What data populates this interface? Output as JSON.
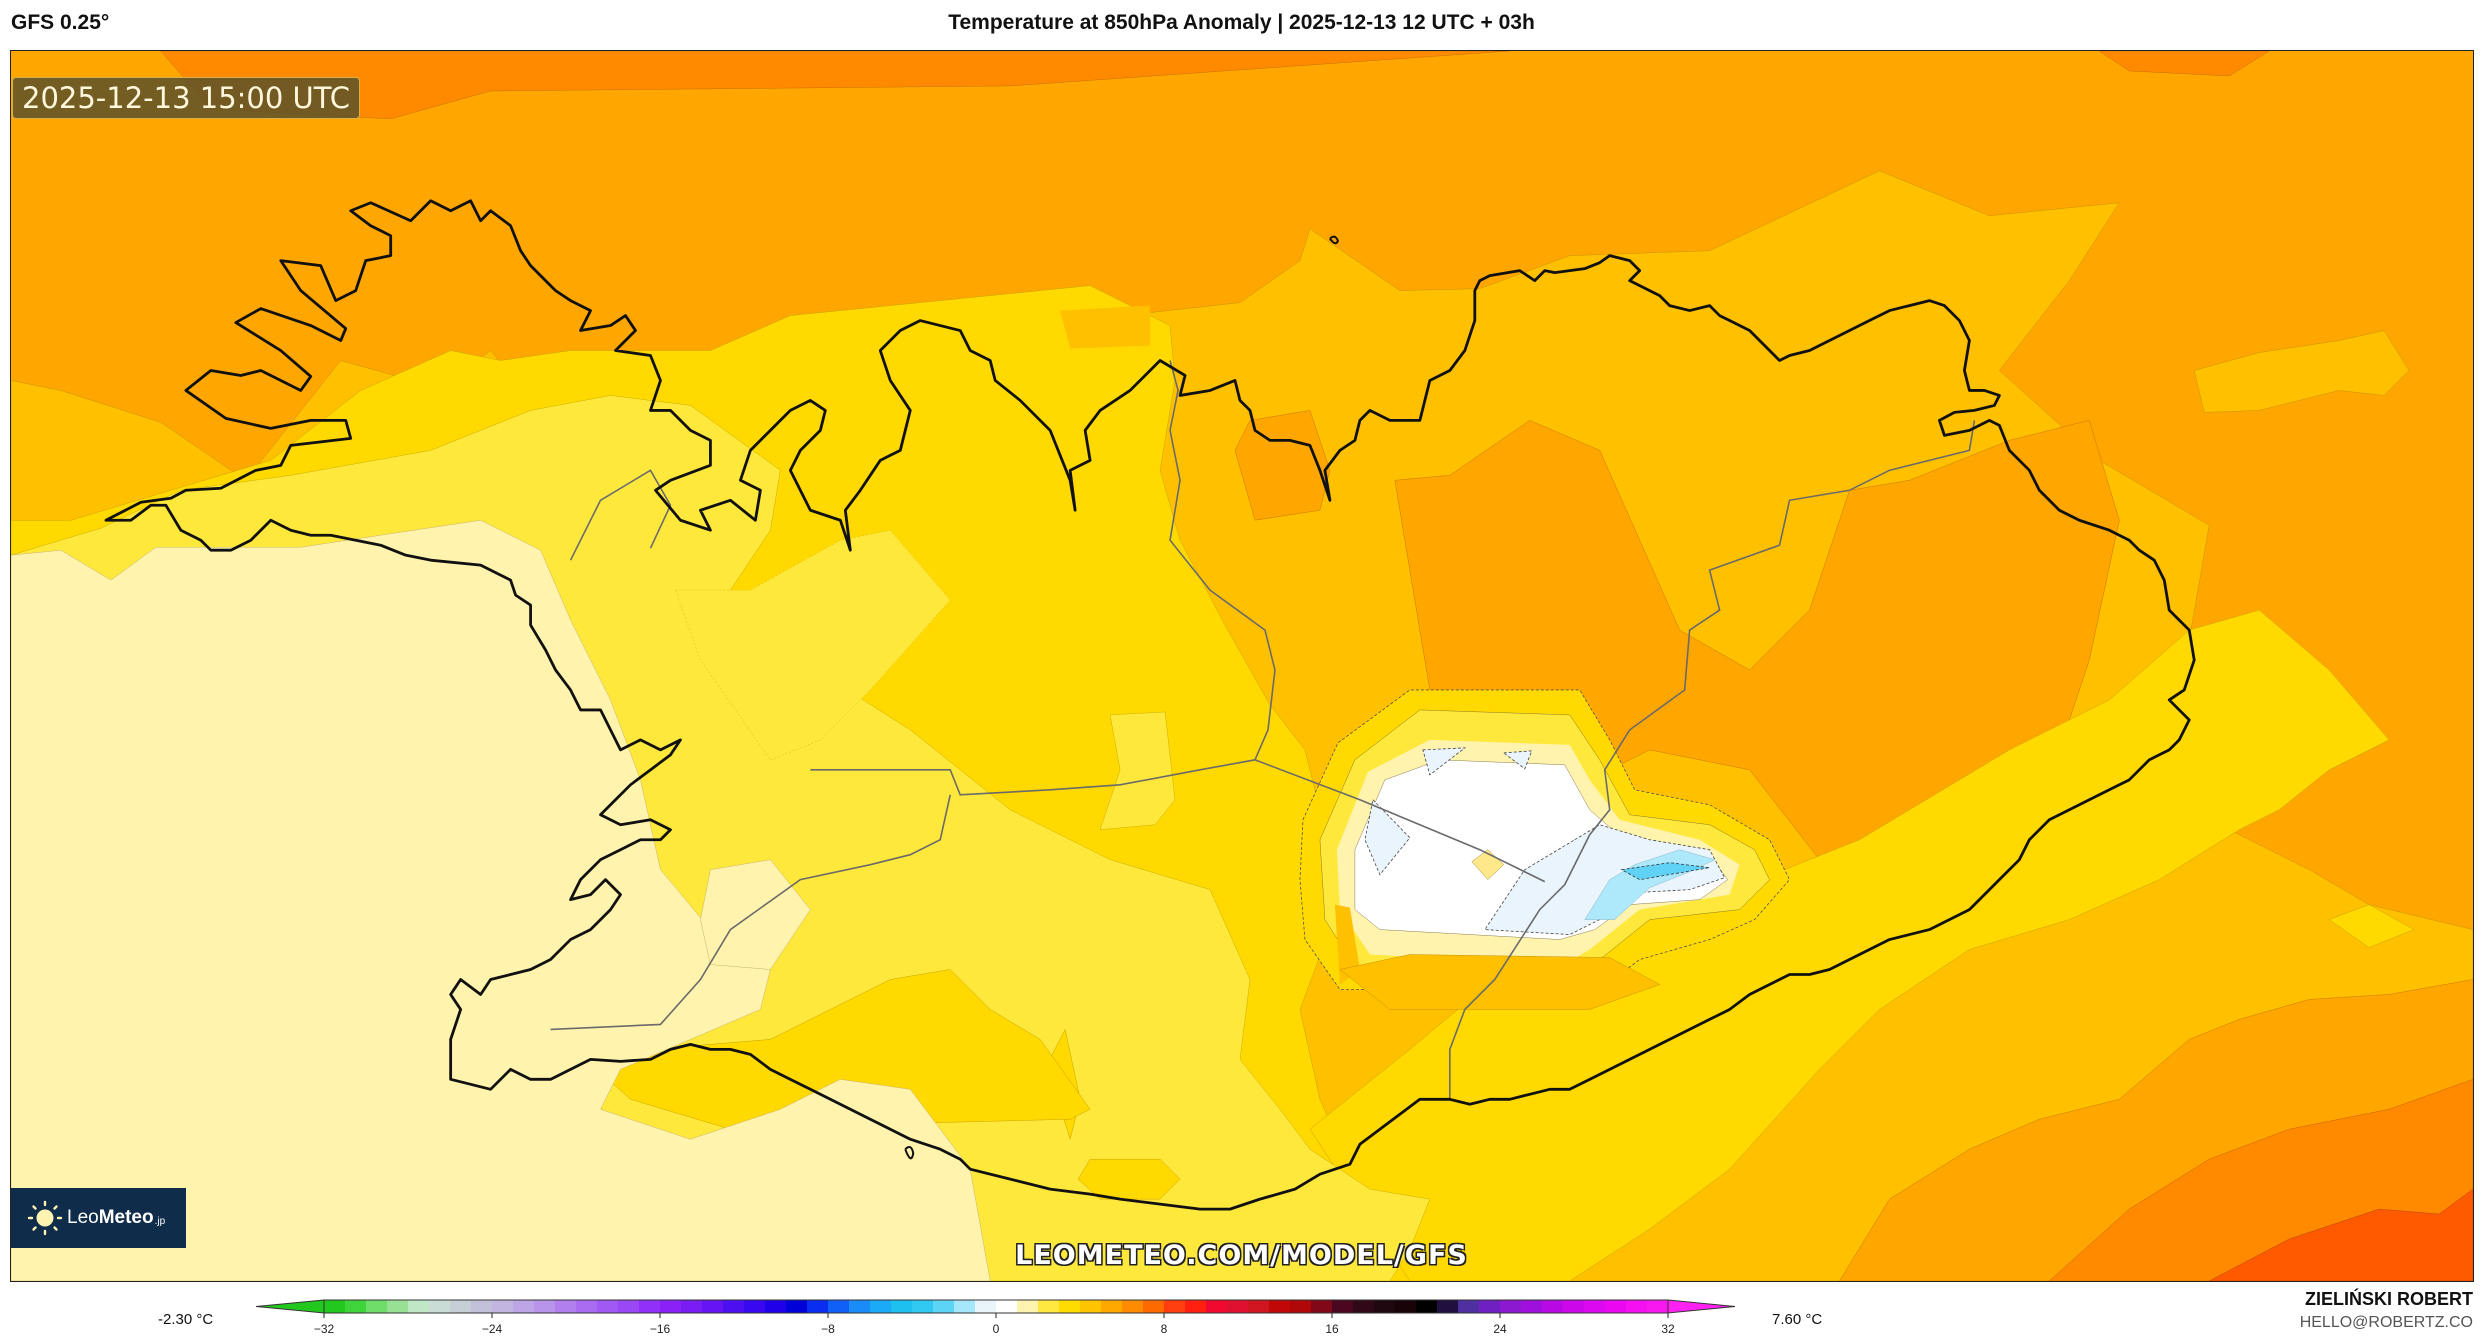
{
  "header": {
    "model": "GFS 0.25°",
    "title": "Temperature at 850hPa Anomaly | 2025-12-13 12 UTC + 03h"
  },
  "map": {
    "valid_time": "2025-12-13 15:00 UTC",
    "region": "Iceland",
    "watermark": "LEOMETEO.COM/MODEL/GFS",
    "logo": {
      "name_light": "Leo",
      "name_bold": "Meteo",
      "suffix": ".jp",
      "icon": "sun-icon"
    },
    "fill_colors": {
      "below_minus1": "#5fd2f5",
      "minus1_0": "#aee8fb",
      "near_0": "#e9f4fc",
      "0_1": "#ffffff",
      "1_2": "#fff3ad",
      "2_3": "#ffe83c",
      "3_4": "#ffd900",
      "4_5": "#ffc000",
      "5_6": "#ffa600",
      "6_7": "#ff8a00",
      "7_8": "#ff5a00"
    }
  },
  "colorbar": {
    "unit": "°C",
    "min_label": "-2.30 °C",
    "max_label": "7.60 °C",
    "ticks": [
      "-32",
      "-24",
      "-16",
      "-8",
      "0",
      "8",
      "16",
      "24",
      "32"
    ],
    "range": [
      -32,
      32
    ],
    "stops": [
      {
        "v": -32,
        "c": "#22c81e"
      },
      {
        "v": -31,
        "c": "#3fd43a"
      },
      {
        "v": -30,
        "c": "#6fdd6a"
      },
      {
        "v": -29,
        "c": "#98e094"
      },
      {
        "v": -28,
        "c": "#bfe7c6"
      },
      {
        "v": -27,
        "c": "#c9ddd6"
      },
      {
        "v": -26,
        "c": "#c6cfd6"
      },
      {
        "v": -25,
        "c": "#c2c0d8"
      },
      {
        "v": -24,
        "c": "#c2b6e0"
      },
      {
        "v": -23,
        "c": "#bea5e6"
      },
      {
        "v": -22,
        "c": "#b894ea"
      },
      {
        "v": -21,
        "c": "#b180ee"
      },
      {
        "v": -20,
        "c": "#a96cf0"
      },
      {
        "v": -19,
        "c": "#a05af4"
      },
      {
        "v": -18,
        "c": "#9a48f6"
      },
      {
        "v": -17,
        "c": "#9030f8"
      },
      {
        "v": -16,
        "c": "#8a22f8"
      },
      {
        "v": -15,
        "c": "#7a1cf4"
      },
      {
        "v": -14,
        "c": "#6414f2"
      },
      {
        "v": -13,
        "c": "#4c10f0"
      },
      {
        "v": -12,
        "c": "#3808f0"
      },
      {
        "v": -11,
        "c": "#2000e8"
      },
      {
        "v": -10,
        "c": "#0000d8"
      },
      {
        "v": -9,
        "c": "#0a2ef0"
      },
      {
        "v": -8,
        "c": "#1060f8"
      },
      {
        "v": -7,
        "c": "#1a8cfa"
      },
      {
        "v": -6,
        "c": "#1aaaf8"
      },
      {
        "v": -5,
        "c": "#1ec0f0"
      },
      {
        "v": -4,
        "c": "#30c8f0"
      },
      {
        "v": -3,
        "c": "#5cd4f6"
      },
      {
        "v": -2,
        "c": "#a6e6fb"
      },
      {
        "v": -1,
        "c": "#eaf4fb"
      },
      {
        "v": 0,
        "c": "#ffffff"
      },
      {
        "v": 1,
        "c": "#fff3b0"
      },
      {
        "v": 2,
        "c": "#ffe840"
      },
      {
        "v": 3,
        "c": "#ffdc00"
      },
      {
        "v": 4,
        "c": "#ffc400"
      },
      {
        "v": 5,
        "c": "#ffa800"
      },
      {
        "v": 6,
        "c": "#ff8c00"
      },
      {
        "v": 7,
        "c": "#ff6a00"
      },
      {
        "v": 8,
        "c": "#ff3e10"
      },
      {
        "v": 9,
        "c": "#ff2010"
      },
      {
        "v": 10,
        "c": "#f00a30"
      },
      {
        "v": 11,
        "c": "#e01030"
      },
      {
        "v": 12,
        "c": "#d01420"
      },
      {
        "v": 13,
        "c": "#c00808"
      },
      {
        "v": 14,
        "c": "#b00808"
      },
      {
        "v": 15,
        "c": "#800818"
      },
      {
        "v": 16,
        "c": "#4a0820"
      },
      {
        "v": 17,
        "c": "#300818"
      },
      {
        "v": 18,
        "c": "#200810"
      },
      {
        "v": 19,
        "c": "#180408"
      },
      {
        "v": 20,
        "c": "#000000"
      },
      {
        "v": 21,
        "c": "#201040"
      },
      {
        "v": 22,
        "c": "#5030a0"
      },
      {
        "v": 23,
        "c": "#7020c0"
      },
      {
        "v": 24,
        "c": "#8c18d0"
      },
      {
        "v": 25,
        "c": "#a010dc"
      },
      {
        "v": 26,
        "c": "#b808e4"
      },
      {
        "v": 27,
        "c": "#cc08ea"
      },
      {
        "v": 28,
        "c": "#dc08f0"
      },
      {
        "v": 29,
        "c": "#ea08f2"
      },
      {
        "v": 30,
        "c": "#f410f0"
      },
      {
        "v": 31,
        "c": "#f818f0"
      }
    ],
    "under_color": "#22c81e",
    "over_color": "#ff22f0"
  },
  "credits": {
    "author": "ZIELIŃSKI ROBERT",
    "email": "HELLO@ROBERTZ.CO"
  }
}
